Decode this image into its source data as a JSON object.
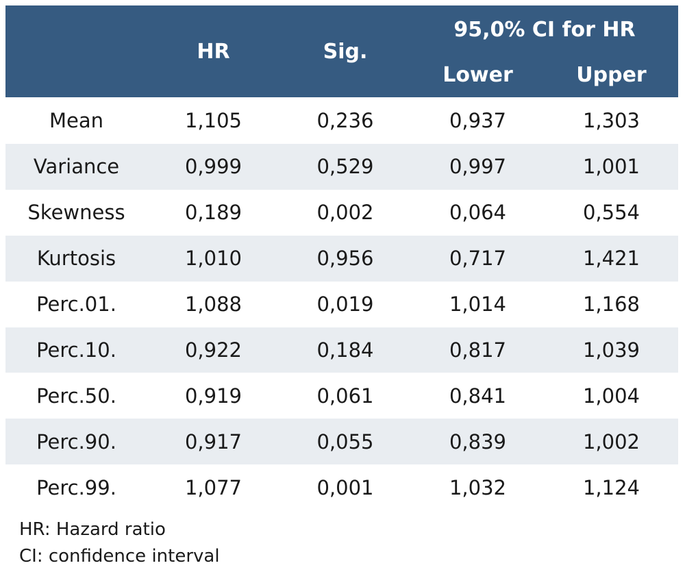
{
  "table": {
    "header": {
      "hr": "HR",
      "sig": "Sig.",
      "ci": "95,0% CI for HR",
      "lower": "Lower",
      "upper": "Upper"
    },
    "rows": [
      [
        "Mean",
        "1,105",
        "0,236",
        "0,937",
        "1,303"
      ],
      [
        "Variance",
        "0,999",
        "0,529",
        "0,997",
        "1,001"
      ],
      [
        "Skewness",
        "0,189",
        "0,002",
        "0,064",
        "0,554"
      ],
      [
        "Kurtosis",
        "1,010",
        "0,956",
        "0,717",
        "1,421"
      ],
      [
        "Perc.01.",
        "1,088",
        "0,019",
        "1,014",
        "1,168"
      ],
      [
        "Perc.10.",
        "0,922",
        "0,184",
        "0,817",
        "1,039"
      ],
      [
        "Perc.50.",
        "0,919",
        "0,061",
        "0,841",
        "1,004"
      ],
      [
        "Perc.90.",
        "0,917",
        "0,055",
        "0,839",
        "1,002"
      ],
      [
        "Perc.99.",
        "1,077",
        "0,001",
        "1,032",
        "1,124"
      ]
    ]
  },
  "notes": [
    "HR: Hazard ratio",
    "CI: confidence interval"
  ]
}
